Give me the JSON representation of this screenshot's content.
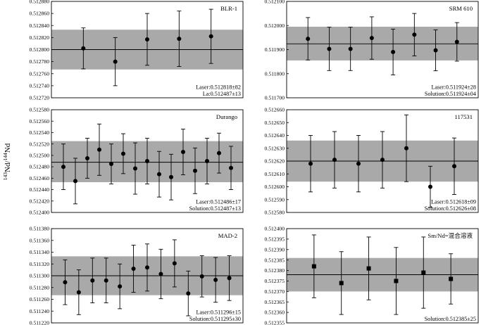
{
  "figure": {
    "ylabel_html": "<sup>143</sup>Nd/<sup>144</sup>Nd",
    "ylabel_text": "143Nd/144Nd"
  },
  "chart_data": [
    {
      "type": "scatter",
      "title": "BLR-1",
      "ylim": [
        0.51272,
        0.51288
      ],
      "yticks": [
        "0.512720",
        "0.512740",
        "0.512760",
        "0.512780",
        "0.512800",
        "0.512820",
        "0.512840",
        "0.512860",
        "0.512880"
      ],
      "reference": 0.5128,
      "band": [
        0.512767,
        0.512833
      ],
      "marker": "circle",
      "points": [
        {
          "y": 0.512802,
          "err": 3.4e-05
        },
        {
          "y": 0.51278,
          "err": 4e-05
        },
        {
          "y": 0.512817,
          "err": 4.3e-05
        },
        {
          "y": 0.512818,
          "err": 4.6e-05
        },
        {
          "y": 0.512822,
          "err": 4.5e-05
        }
      ],
      "notes": [
        "Laser:0.512818±82",
        "La:0.512487±13"
      ]
    },
    {
      "type": "scatter",
      "title": "SRM 610",
      "ylim": [
        0.5117,
        0.5121
      ],
      "yticks": [
        "0.511700",
        "0.511800",
        "0.511900",
        "0.512000",
        "0.512100"
      ],
      "reference": 0.511924,
      "band": [
        0.511855,
        0.511995
      ],
      "marker": "circle",
      "points": [
        {
          "y": 0.511945,
          "err": 8.8e-05
        },
        {
          "y": 0.511903,
          "err": 9e-05
        },
        {
          "y": 0.511903,
          "err": 9e-05
        },
        {
          "y": 0.511948,
          "err": 8.8e-05
        },
        {
          "y": 0.51189,
          "err": 9.5e-05
        },
        {
          "y": 0.511962,
          "err": 8.8e-05
        },
        {
          "y": 0.511897,
          "err": 8.5e-05
        },
        {
          "y": 0.511932,
          "err": 8e-05
        }
      ],
      "notes": [
        "Laser:0.511924±28",
        "Solution:0.511924±04"
      ]
    },
    {
      "type": "scatter",
      "title": "Durango",
      "ylim": [
        0.5124,
        0.51258
      ],
      "yticks": [
        "0.512400",
        "0.512420",
        "0.512440",
        "0.512460",
        "0.512480",
        "0.512500",
        "0.512520",
        "0.512540",
        "0.512560",
        "0.512580"
      ],
      "reference": 0.512488,
      "band": [
        0.512453,
        0.512525
      ],
      "marker": "circle",
      "points": [
        {
          "y": 0.51248,
          "err": 4e-05
        },
        {
          "y": 0.512455,
          "err": 4e-05
        },
        {
          "y": 0.512495,
          "err": 3.5e-05
        },
        {
          "y": 0.51251,
          "err": 4.5e-05
        },
        {
          "y": 0.512485,
          "err": 3.5e-05
        },
        {
          "y": 0.512503,
          "err": 3.5e-05
        },
        {
          "y": 0.512477,
          "err": 4.5e-05
        },
        {
          "y": 0.51249,
          "err": 4e-05
        },
        {
          "y": 0.512467,
          "err": 4e-05
        },
        {
          "y": 0.512462,
          "err": 4e-05
        },
        {
          "y": 0.512506,
          "err": 4e-05
        },
        {
          "y": 0.512473,
          "err": 4e-05
        },
        {
          "y": 0.51249,
          "err": 4e-05
        },
        {
          "y": 0.512504,
          "err": 3.5e-05
        },
        {
          "y": 0.512478,
          "err": 3.8e-05
        }
      ],
      "notes": [
        "Laser:0.512486±17",
        "Solution:0.512487±13"
      ]
    },
    {
      "type": "scatter",
      "title": "117531",
      "ylim": [
        0.51258,
        0.51266
      ],
      "yticks": [
        "0.512580",
        "0.512590",
        "0.512600",
        "0.512610",
        "0.512620",
        "0.512630",
        "0.512640",
        "0.512650",
        "0.512660"
      ],
      "reference": 0.51262,
      "band": [
        0.512604,
        0.512636
      ],
      "marker": "circle",
      "points": [
        {
          "y": 0.512618,
          "err": 2.2e-05
        },
        {
          "y": 0.512621,
          "err": 2.2e-05
        },
        {
          "y": 0.512618,
          "err": 2.2e-05
        },
        {
          "y": 0.512621,
          "err": 2.2e-05
        },
        {
          "y": 0.51263,
          "err": 2.6e-05
        },
        {
          "y": 0.5126,
          "err": 1.6e-05
        },
        {
          "y": 0.512616,
          "err": 2.2e-05
        }
      ],
      "notes": [
        "Laser:0.512618±09",
        "Solution:0.512626±08"
      ]
    },
    {
      "type": "scatter",
      "title": "MAD-2",
      "ylim": [
        0.51122,
        0.51138
      ],
      "yticks": [
        "0.511220",
        "0.511240",
        "0.511260",
        "0.511280",
        "0.511300",
        "0.511320",
        "0.511340",
        "0.511360",
        "0.511380"
      ],
      "reference": 0.5113,
      "band": [
        0.511267,
        0.511333
      ],
      "marker": "circle",
      "points": [
        {
          "y": 0.511289,
          "err": 3.8e-05
        },
        {
          "y": 0.511272,
          "err": 3.8e-05
        },
        {
          "y": 0.511292,
          "err": 3.8e-05
        },
        {
          "y": 0.511292,
          "err": 3.8e-05
        },
        {
          "y": 0.511282,
          "err": 3.8e-05
        },
        {
          "y": 0.511312,
          "err": 4e-05
        },
        {
          "y": 0.511314,
          "err": 4e-05
        },
        {
          "y": 0.511303,
          "err": 4.2e-05
        },
        {
          "y": 0.511321,
          "err": 4e-05
        },
        {
          "y": 0.51127,
          "err": 3.8e-05
        },
        {
          "y": 0.511299,
          "err": 3.5e-05
        },
        {
          "y": 0.511293,
          "err": 3.8e-05
        },
        {
          "y": 0.511296,
          "err": 3.8e-05
        }
      ],
      "notes": [
        "Laser:0.511296±15",
        "Solution:0.511295±30"
      ]
    },
    {
      "type": "scatter",
      "title": "Sm/Nd=混合溶液",
      "ylim": [
        0.512355,
        0.5124
      ],
      "yticks": [
        "0.512355",
        "0.512360",
        "0.512365",
        "0.512370",
        "0.512375",
        "0.512380",
        "0.512385",
        "0.512390",
        "0.512395",
        "0.512400"
      ],
      "reference": 0.512378,
      "band": [
        0.51237,
        0.512386
      ],
      "marker": "square",
      "points": [
        {
          "y": 0.512382,
          "err": 1.5e-05
        },
        {
          "y": 0.512374,
          "err": 1.5e-05
        },
        {
          "y": 0.512381,
          "err": 1.5e-05
        },
        {
          "y": 0.512375,
          "err": 1.6e-05
        },
        {
          "y": 0.512379,
          "err": 1.7e-05
        },
        {
          "y": 0.512376,
          "err": 1.2e-05
        }
      ],
      "notes": [
        "",
        "Solution:0.512385±25"
      ]
    }
  ]
}
